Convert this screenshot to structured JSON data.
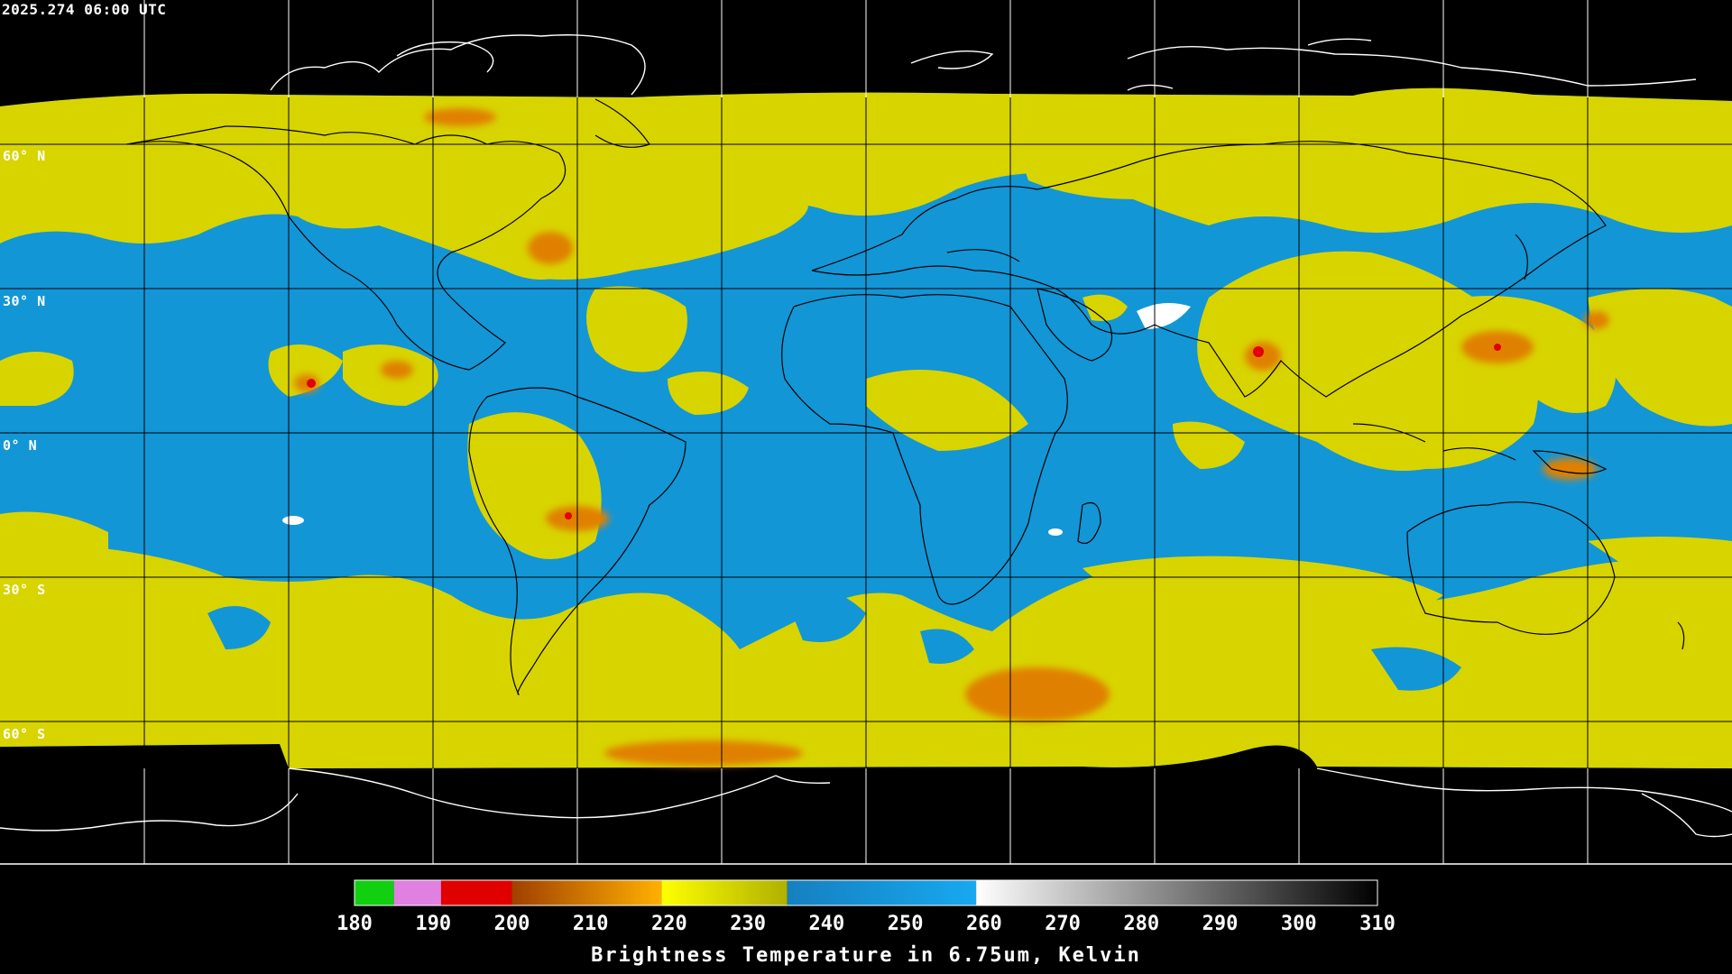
{
  "header": {
    "timestamp": "2025.274 06:00 UTC"
  },
  "map": {
    "projection": "equirectangular",
    "latitude_labels": [
      "60° N",
      "30° N",
      "0° N",
      "30° S",
      "60° S"
    ],
    "colors": {
      "background": "#000000",
      "moist_cold": "#d8d400",
      "dry": "#1296d6",
      "deep_convection": "#e08000",
      "very_dry": "#ffffff",
      "coastline_land": "#000000",
      "coastline_polar": "#ffffff",
      "graticule": "#000000"
    }
  },
  "colorbar": {
    "ticks": [
      "180",
      "190",
      "200",
      "210",
      "220",
      "230",
      "240",
      "250",
      "260",
      "270",
      "280",
      "290",
      "300",
      "310"
    ],
    "min": 180,
    "max": 310,
    "segments": [
      {
        "from": 180,
        "to": 185,
        "color": "#10d010"
      },
      {
        "from": 185,
        "to": 191,
        "color": "#e080e0"
      },
      {
        "from": 191,
        "to": 200,
        "color": "#e00000"
      },
      {
        "from": 200,
        "to": 219,
        "gradient": [
          "#a04000",
          "#ffb000"
        ]
      },
      {
        "from": 219,
        "to": 235,
        "gradient": [
          "#ffff00",
          "#b0b000"
        ]
      },
      {
        "from": 235,
        "to": 259,
        "gradient": [
          "#1580c0",
          "#18a8f0"
        ]
      },
      {
        "from": 259,
        "to": 310,
        "gradient": [
          "#ffffff",
          "#000000"
        ]
      }
    ],
    "title": "Brightness Temperature in 6.75um, Kelvin"
  }
}
